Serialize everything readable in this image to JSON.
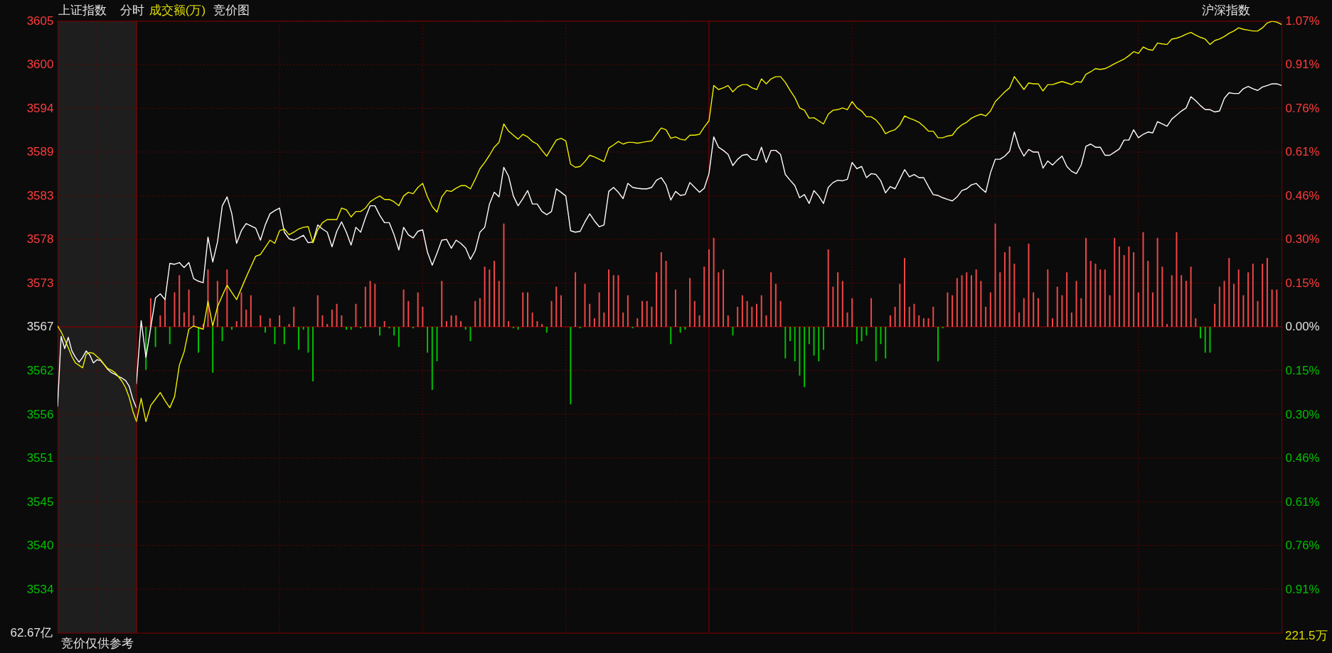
{
  "chart_data": [
    {
      "type": "line",
      "title": "上证指数",
      "xlabel": "竞价仅供参考",
      "annotations": [
        "分时",
        "成交额(万)",
        "竞价图",
        "62.67亿"
      ],
      "categories": [
        null,
        null,
        null,
        null,
        null,
        null,
        null,
        null,
        null,
        null,
        null,
        null,
        null,
        null,
        null,
        null,
        null,
        null,
        null,
        null,
        null,
        null,
        null
      ],
      "ylim": [
        3528.95,
        3605.25
      ],
      "yticks": [
        {
          "value": 3534.4,
          "label": "3534"
        },
        {
          "value": 3539.85,
          "label": "3540"
        },
        {
          "value": 3545.3,
          "label": "3545"
        },
        {
          "value": 3550.75,
          "label": "3551"
        },
        {
          "value": 3556.2,
          "label": "3556"
        },
        {
          "value": 3561.65,
          "label": "3562"
        },
        {
          "value": 3567.1,
          "label": "3567"
        },
        {
          "value": 3572.55,
          "label": "3573"
        },
        {
          "value": 3578.0,
          "label": "3578"
        },
        {
          "value": 3583.45,
          "label": "3583"
        },
        {
          "value": 3588.9,
          "label": "3589"
        },
        {
          "value": 3594.35,
          "label": "3594"
        },
        {
          "value": 3599.8,
          "label": "3600"
        },
        {
          "value": 3605.25,
          "label": "3605"
        }
      ],
      "tick_labels": "y",
      "grid": true,
      "ref_lines": [
        {
          "axis": "y",
          "value": 3567.1,
          "color": "#8c0000",
          "line_style": "solid"
        }
      ],
      "series": [
        {
          "color": "#ffffff",
          "values": [
            3557.2,
            3565.9,
            3564.4,
            3565.8,
            3564.1,
            3563.3,
            3562.7,
            3563.3,
            3564.1,
            3563.6,
            3562.6,
            3563.0,
            3562.9,
            3562.4,
            3561.8,
            3561.4,
            3561.2,
            3560.9,
            3560.7,
            3560.4,
            3559.7,
            3558.1,
            3557.0
          ]
        },
        {
          "color": "#f0f000",
          "values": [
            3567.2,
            3566.5,
            3565.5,
            3564.5,
            3563.4,
            3562.6,
            3562.3,
            3562.0,
            3563.7,
            3563.9,
            3563.8,
            3563.4,
            3563.0,
            3562.4,
            3561.9,
            3561.7,
            3561.4,
            3560.9,
            3560.3,
            3559.5,
            3558.3,
            3556.6,
            3555.3
          ]
        }
      ]
    },
    {
      "type": "line",
      "annotations": [
        "沪深指数",
        "221.5万"
      ],
      "categories": [
        null,
        null,
        null,
        null,
        null,
        null,
        null,
        null,
        null,
        null,
        null,
        null,
        null,
        null,
        null,
        null,
        null,
        null,
        null,
        null,
        null,
        null,
        null,
        null,
        null,
        null,
        null,
        null,
        null,
        null,
        null,
        null,
        null,
        null,
        null,
        null,
        null,
        null,
        null,
        null,
        null,
        null,
        null,
        null,
        null,
        null,
        null,
        null,
        null,
        null,
        null,
        null,
        null,
        null,
        null,
        null,
        null,
        null,
        null,
        null,
        null,
        null,
        null,
        null,
        null,
        null,
        null,
        null,
        null,
        null,
        null,
        null,
        null,
        null,
        null,
        null,
        null,
        null,
        null,
        null,
        null,
        null,
        null,
        null,
        null,
        null,
        null,
        null,
        null,
        null,
        null,
        null,
        null,
        null,
        null,
        null,
        null,
        null,
        null,
        null,
        null,
        null,
        null,
        null,
        null,
        null,
        null,
        null,
        null,
        null,
        null,
        null,
        null,
        null,
        null,
        null,
        null,
        null,
        null,
        null,
        null,
        null,
        null,
        null,
        null,
        null,
        null,
        null,
        null,
        null,
        null,
        null,
        null,
        null,
        null,
        null,
        null,
        null,
        null,
        null,
        null,
        null,
        null,
        null,
        null,
        null,
        null,
        null,
        null,
        null,
        null,
        null,
        null,
        null,
        null,
        null,
        null,
        null,
        null,
        null,
        null,
        null,
        null,
        null,
        null,
        null,
        null,
        null,
        null,
        null,
        null,
        null,
        null,
        null,
        null,
        null,
        null,
        null,
        null,
        null,
        null,
        null,
        null,
        null,
        null,
        null,
        null,
        null,
        null,
        null,
        null,
        null,
        null,
        null,
        null,
        null,
        null,
        null,
        null,
        null,
        null,
        null,
        null,
        null,
        null,
        null,
        null,
        null,
        null,
        null,
        null,
        null,
        null,
        null,
        null,
        null,
        null,
        null,
        null,
        null,
        null,
        null,
        null,
        null,
        null,
        null,
        null,
        null,
        null,
        null,
        null,
        null,
        null,
        null,
        null,
        null,
        null,
        null,
        null,
        null,
        null
      ],
      "ylim": [
        -1.0661,
        1.0661
      ],
      "yticks": [
        {
          "value": -0.9138,
          "label": "0.91%"
        },
        {
          "value": -0.7615,
          "label": "0.76%"
        },
        {
          "value": -0.6092,
          "label": "0.61%"
        },
        {
          "value": -0.4569,
          "label": "0.46%"
        },
        {
          "value": -0.3046,
          "label": "0.30%"
        },
        {
          "value": -0.1523,
          "label": "0.15%"
        },
        {
          "value": 0,
          "label": "0.00%"
        },
        {
          "value": 0.1523,
          "label": "0.15%"
        },
        {
          "value": 0.3046,
          "label": "0.30%"
        },
        {
          "value": 0.4569,
          "label": "0.46%"
        },
        {
          "value": 0.6092,
          "label": "0.61%"
        },
        {
          "value": 0.7615,
          "label": "0.76%"
        },
        {
          "value": 0.9138,
          "label": "0.91%"
        },
        {
          "value": 1.0661,
          "label": "1.07%"
        }
      ],
      "tick_labels": "y",
      "grid": true,
      "ref_lines": [
        {
          "axis": "y",
          "value": 0,
          "color": "#8c0000",
          "line_style": "solid"
        }
      ],
      "series": [
        {
          "type": "bar",
          "color": "#f04646",
          "values": [
            null,
            null,
            null,
            0.1,
            null,
            0.04,
            0.1,
            null,
            0.12,
            0.18,
            0.05,
            0.13,
            0.04,
            null,
            0.01,
            0.2,
            null,
            0.16,
            null,
            0.2,
            null,
            0.02,
            0.12,
            0.06,
            0.11,
            null,
            0.04,
            null,
            0.03,
            null,
            0.04,
            null,
            0.01,
            0.07,
            null,
            null,
            null,
            null,
            0.11,
            0.04,
            0.01,
            0.06,
            0.08,
            0.04,
            null,
            null,
            0.08,
            null,
            0.14,
            0.16,
            0.15,
            null,
            0.02,
            null,
            null,
            null,
            0.13,
            0.09,
            null,
            0.12,
            0.07,
            null,
            null,
            null,
            0.16,
            0.02,
            0.04,
            0.04,
            0.02,
            null,
            null,
            0.09,
            0.1,
            0.21,
            0.2,
            0.23,
            0.16,
            0.36,
            0.02,
            null,
            null,
            0.12,
            0.12,
            0.05,
            0.02,
            0.01,
            null,
            0.09,
            0.14,
            0.11,
            null,
            null,
            0.19,
            null,
            0.15,
            0.08,
            0.03,
            0.12,
            0.05,
            0.2,
            0.18,
            0.18,
            0.05,
            0.11,
            null,
            0.03,
            0.09,
            0.09,
            0.07,
            0.19,
            0.26,
            0.23,
            null,
            0.13,
            null,
            null,
            0.17,
            0.09,
            0.04,
            0.21,
            0.27,
            0.31,
            0.19,
            0.2,
            0.04,
            null,
            0.07,
            0.11,
            0.09,
            0.07,
            0.08,
            0.11,
            0.04,
            0.19,
            0.15,
            0.09,
            null,
            null,
            null,
            null,
            null,
            null,
            null,
            null,
            null,
            0.27,
            0.14,
            0.19,
            0.16,
            0.05,
            0.1,
            null,
            null,
            null,
            0.1,
            null,
            null,
            null,
            0.04,
            0.07,
            0.15,
            0.24,
            0.07,
            0.08,
            0.04,
            0.03,
            0.03,
            0.07,
            null,
            null,
            0.12,
            0.11,
            0.17,
            0.18,
            0.19,
            0.18,
            0.2,
            0.16,
            0.07,
            0.12,
            0.36,
            0.19,
            0.26,
            0.28,
            0.22,
            0.05,
            0.1,
            0.29,
            0.12,
            0.1,
            null,
            0.2,
            0.03,
            0.14,
            0.11,
            0.19,
            0.05,
            0.16,
            0.1,
            0.31,
            0.23,
            0.22,
            0.2,
            0.2,
            0.11,
            0.31,
            0.28,
            0.25,
            0.28,
            0.26,
            0.12,
            0.33,
            0.23,
            0.12,
            0.31,
            0.21,
            0.01,
            0.18,
            0.33,
            0.18,
            0.16,
            0.21,
            0.03,
            null,
            null,
            null,
            0.08,
            0.14,
            0.16,
            0.24,
            0.15,
            0.2,
            0.11,
            0.19,
            0.22,
            0.09,
            0.22,
            0.24,
            0.13,
            0.13,
            null
          ]
        },
        {
          "type": "bar",
          "color": "#00c000",
          "values": [
            null,
            null,
            -0.15,
            null,
            -0.07,
            null,
            null,
            -0.06,
            null,
            null,
            null,
            null,
            null,
            -0.09,
            null,
            null,
            -0.16,
            null,
            -0.05,
            null,
            -0.01,
            null,
            null,
            null,
            null,
            null,
            null,
            -0.02,
            null,
            -0.06,
            null,
            -0.06,
            null,
            null,
            -0.08,
            -0.01,
            -0.09,
            -0.19,
            null,
            null,
            null,
            null,
            null,
            null,
            -0.01,
            -0.01,
            null,
            -0.005,
            null,
            null,
            null,
            -0.03,
            null,
            -0.005,
            -0.03,
            -0.07,
            null,
            null,
            -0.005,
            null,
            null,
            -0.09,
            -0.22,
            -0.12,
            null,
            null,
            null,
            null,
            null,
            -0.01,
            -0.05,
            null,
            null,
            null,
            null,
            null,
            null,
            null,
            null,
            -0.005,
            -0.01,
            null,
            null,
            null,
            null,
            null,
            -0.02,
            null,
            null,
            null,
            null,
            -0.27,
            null,
            -0.005,
            null,
            null,
            null,
            null,
            null,
            null,
            null,
            null,
            null,
            null,
            -0.005,
            null,
            null,
            null,
            null,
            null,
            null,
            null,
            -0.06,
            null,
            -0.02,
            -0.01,
            null,
            null,
            null,
            null,
            null,
            null,
            null,
            null,
            null,
            -0.03,
            null,
            null,
            null,
            null,
            null,
            null,
            null,
            null,
            null,
            null,
            -0.11,
            -0.05,
            -0.12,
            -0.17,
            -0.21,
            -0.06,
            -0.1,
            -0.12,
            -0.08,
            null,
            null,
            null,
            null,
            null,
            null,
            -0.06,
            -0.05,
            -0.03,
            null,
            -0.12,
            -0.06,
            -0.11,
            null,
            null,
            null,
            null,
            null,
            null,
            null,
            null,
            null,
            null,
            -0.12,
            -0.005,
            null,
            null,
            null,
            null,
            null,
            null,
            null,
            null,
            null,
            null,
            null,
            null,
            null,
            null,
            null,
            null,
            null,
            null,
            null,
            null,
            null,
            null,
            null,
            null,
            null,
            null,
            null,
            null,
            null,
            null,
            null,
            null,
            null,
            null,
            null,
            null,
            null,
            null,
            null,
            null,
            null,
            null,
            null,
            null,
            null,
            null,
            null,
            null,
            null,
            null,
            null,
            null,
            null,
            -0.04,
            -0.09,
            -0.09,
            null,
            null,
            null,
            null,
            null,
            null,
            null,
            null,
            null,
            null,
            null,
            null,
            null,
            null,
            null
          ]
        },
        {
          "color": "#ffffff",
          "values": [
            -0.198,
            0.022,
            -0.106,
            -0.003,
            0.101,
            0.115,
            0.095,
            0.221,
            0.218,
            0.224,
            0.207,
            0.224,
            0.168,
            0.159,
            0.154,
            0.313,
            0.226,
            0.296,
            0.422,
            0.453,
            0.394,
            0.291,
            0.335,
            0.36,
            0.352,
            0.344,
            0.302,
            0.355,
            0.394,
            0.405,
            0.414,
            0.33,
            0.307,
            0.302,
            0.31,
            0.319,
            0.293,
            0.296,
            0.355,
            0.341,
            0.33,
            0.279,
            0.333,
            0.366,
            0.33,
            0.285,
            0.347,
            0.33,
            0.38,
            0.422,
            0.422,
            0.389,
            0.363,
            0.363,
            0.321,
            0.268,
            0.347,
            0.321,
            0.31,
            0.333,
            0.338,
            0.26,
            0.215,
            0.257,
            0.302,
            0.305,
            0.274,
            0.302,
            0.291,
            0.274,
            0.235,
            0.265,
            0.33,
            0.347,
            0.428,
            0.469,
            0.453,
            0.556,
            0.525,
            0.456,
            0.422,
            0.447,
            0.475,
            0.428,
            0.428,
            0.402,
            0.391,
            0.402,
            0.481,
            0.469,
            0.456,
            0.335,
            0.33,
            0.333,
            0.366,
            0.394,
            0.369,
            0.349,
            0.355,
            0.472,
            0.486,
            0.469,
            0.447,
            0.5,
            0.486,
            0.483,
            0.481,
            0.481,
            0.486,
            0.511,
            0.52,
            0.495,
            0.442,
            0.472,
            0.458,
            0.461,
            0.503,
            0.486,
            0.469,
            0.483,
            0.534,
            0.662,
            0.626,
            0.615,
            0.601,
            0.562,
            0.584,
            0.598,
            0.601,
            0.584,
            0.581,
            0.626,
            0.573,
            0.615,
            0.615,
            0.601,
            0.531,
            0.511,
            0.492,
            0.45,
            0.461,
            0.43,
            0.475,
            0.456,
            0.43,
            0.486,
            0.503,
            0.511,
            0.509,
            0.514,
            0.573,
            0.551,
            0.559,
            0.52,
            0.534,
            0.531,
            0.509,
            0.467,
            0.489,
            0.481,
            0.514,
            0.548,
            0.523,
            0.531,
            0.52,
            0.52,
            0.489,
            0.461,
            0.458,
            0.45,
            0.444,
            0.439,
            0.453,
            0.475,
            0.481,
            0.495,
            0.5,
            0.483,
            0.469,
            0.537,
            0.584,
            0.584,
            0.595,
            0.612,
            0.679,
            0.626,
            0.595,
            0.618,
            0.609,
            0.609,
            0.553,
            0.578,
            0.564,
            0.581,
            0.595,
            0.559,
            0.542,
            0.534,
            0.564,
            0.629,
            0.637,
            0.626,
            0.626,
            0.598,
            0.598,
            0.609,
            0.62,
            0.651,
            0.651,
            0.687,
            0.659,
            0.671,
            0.679,
            0.676,
            0.715,
            0.707,
            0.699,
            0.724,
            0.738,
            0.752,
            0.763,
            0.802,
            0.788,
            0.771,
            0.757,
            0.757,
            0.749,
            0.752,
            0.796,
            0.816,
            0.813,
            0.813,
            0.83,
            0.838,
            0.83,
            0.824,
            0.836,
            0.841,
            0.847,
            0.847,
            0.841
          ]
        },
        {
          "color": "#f0f000",
          "values": [
            -0.33,
            -0.249,
            -0.33,
            -0.274,
            -0.252,
            -0.229,
            -0.257,
            -0.282,
            -0.243,
            -0.134,
            -0.087,
            -0.008,
            0.003,
            -0.003,
            -0.008,
            0.089,
            0.003,
            0.07,
            0.109,
            0.145,
            0.12,
            0.095,
            0.134,
            0.173,
            0.21,
            0.246,
            0.252,
            0.277,
            0.302,
            0.291,
            0.335,
            0.341,
            0.321,
            0.33,
            0.341,
            0.347,
            0.349,
            0.293,
            0.338,
            0.363,
            0.374,
            0.374,
            0.374,
            0.414,
            0.408,
            0.383,
            0.402,
            0.402,
            0.414,
            0.436,
            0.447,
            0.456,
            0.444,
            0.444,
            0.436,
            0.422,
            0.456,
            0.469,
            0.464,
            0.486,
            0.5,
            0.453,
            0.419,
            0.4,
            0.453,
            0.475,
            0.472,
            0.483,
            0.492,
            0.492,
            0.481,
            0.514,
            0.551,
            0.573,
            0.598,
            0.626,
            0.643,
            0.707,
            0.682,
            0.668,
            0.654,
            0.671,
            0.662,
            0.646,
            0.637,
            0.615,
            0.595,
            0.623,
            0.651,
            0.657,
            0.648,
            0.567,
            0.556,
            0.559,
            0.576,
            0.598,
            0.592,
            0.584,
            0.576,
            0.623,
            0.634,
            0.646,
            0.637,
            0.643,
            0.643,
            0.64,
            0.643,
            0.646,
            0.648,
            0.671,
            0.693,
            0.687,
            0.657,
            0.662,
            0.654,
            0.651,
            0.668,
            0.668,
            0.671,
            0.696,
            0.718,
            0.841,
            0.827,
            0.833,
            0.841,
            0.819,
            0.836,
            0.844,
            0.844,
            0.833,
            0.827,
            0.864,
            0.847,
            0.864,
            0.872,
            0.872,
            0.852,
            0.824,
            0.799,
            0.763,
            0.755,
            0.727,
            0.729,
            0.718,
            0.707,
            0.741,
            0.755,
            0.757,
            0.763,
            0.757,
            0.785,
            0.763,
            0.752,
            0.732,
            0.732,
            0.721,
            0.701,
            0.673,
            0.682,
            0.687,
            0.704,
            0.735,
            0.727,
            0.721,
            0.713,
            0.699,
            0.682,
            0.682,
            0.659,
            0.659,
            0.665,
            0.668,
            0.69,
            0.704,
            0.713,
            0.727,
            0.735,
            0.741,
            0.735,
            0.752,
            0.785,
            0.802,
            0.819,
            0.833,
            0.872,
            0.85,
            0.827,
            0.85,
            0.847,
            0.847,
            0.822,
            0.844,
            0.844,
            0.85,
            0.855,
            0.85,
            0.844,
            0.855,
            0.852,
            0.88,
            0.889,
            0.9,
            0.897,
            0.9,
            0.908,
            0.917,
            0.925,
            0.933,
            0.945,
            0.959,
            0.953,
            0.975,
            0.967,
            0.964,
            0.989,
            0.986,
            0.984,
            1.003,
            1.006,
            1.012,
            1.02,
            1.026,
            1.017,
            1.009,
            1.003,
            0.984,
            0.998,
            1.003,
            1.012,
            1.023,
            1.031,
            1.042,
            1.037,
            1.034,
            1.031,
            1.031,
            1.042,
            1.059,
            1.065,
            1.062,
            1.054
          ]
        }
      ]
    }
  ]
}
